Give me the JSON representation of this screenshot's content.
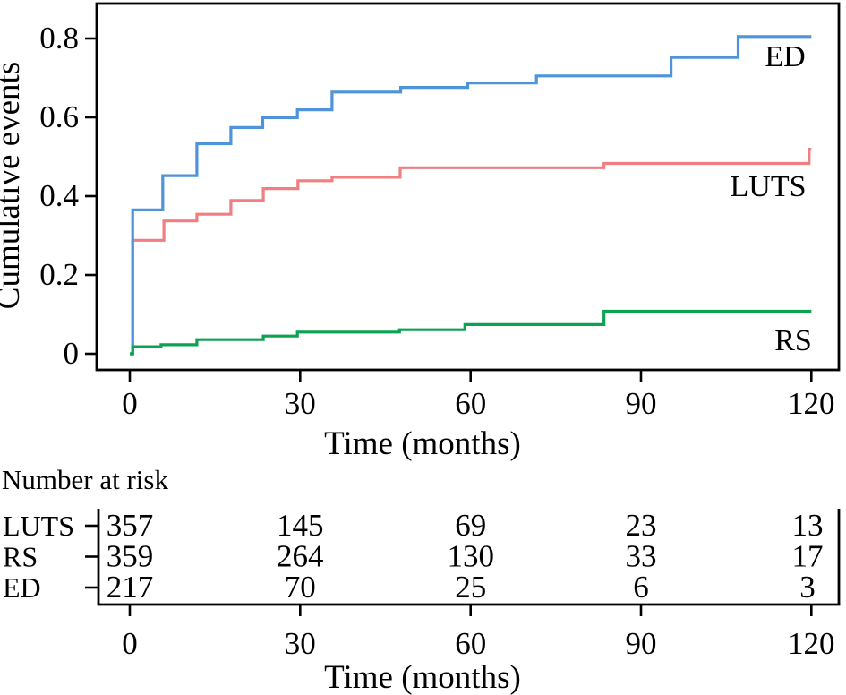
{
  "chart_data": {
    "type": "line",
    "subtype": "step",
    "title": "",
    "xlabel": "Time (months)",
    "ylabel": "Cumulative events",
    "xlim": [
      0,
      120
    ],
    "ylim": [
      0,
      0.89
    ],
    "grid": false,
    "legend_position": "inline-right",
    "x_ticks": [
      0,
      30,
      60,
      90,
      120
    ],
    "x_tick_labels": [
      "0",
      "30",
      "60",
      "90",
      "120"
    ],
    "y_ticks": [
      0,
      0.2,
      0.4,
      0.6,
      0.8
    ],
    "y_tick_labels": [
      "0",
      "0.2",
      "0.4",
      "0.6",
      "0.8"
    ],
    "series": [
      {
        "name": "LUTS",
        "color": "#ef7f80",
        "end_month": 120,
        "steps": [
          [
            0.5,
            0.288
          ],
          [
            6,
            0.337
          ],
          [
            11.8,
            0.354
          ],
          [
            17.8,
            0.389
          ],
          [
            23.5,
            0.419
          ],
          [
            29.6,
            0.439
          ],
          [
            35.6,
            0.448
          ],
          [
            47.6,
            0.472
          ],
          [
            83.5,
            0.483
          ],
          [
            119.6,
            0.519
          ]
        ]
      },
      {
        "name": "ED",
        "color": "#4f94d8",
        "end_month": 120,
        "steps": [
          [
            0.5,
            0.365
          ],
          [
            5.8,
            0.452
          ],
          [
            11.8,
            0.533
          ],
          [
            17.8,
            0.574
          ],
          [
            23.4,
            0.599
          ],
          [
            29.5,
            0.619
          ],
          [
            35.6,
            0.664
          ],
          [
            47.7,
            0.676
          ],
          [
            59.5,
            0.687
          ],
          [
            71.6,
            0.705
          ],
          [
            95.3,
            0.752
          ],
          [
            107.1,
            0.805
          ]
        ]
      },
      {
        "name": "RS",
        "color": "#0aa351",
        "end_month": 120,
        "steps": [
          [
            0.5,
            0.018
          ],
          [
            5.5,
            0.023
          ],
          [
            11.8,
            0.036
          ],
          [
            23.5,
            0.045
          ],
          [
            29.5,
            0.055
          ],
          [
            47.5,
            0.061
          ],
          [
            59,
            0.074
          ],
          [
            83.5,
            0.108
          ]
        ]
      }
    ],
    "number_at_risk": {
      "title": "Number at risk",
      "xlabel": "Time (months)",
      "x_tick_labels": [
        "0",
        "30",
        "60",
        "90",
        "120"
      ],
      "rows": [
        {
          "label": "LUTS",
          "values": [
            "357",
            "145",
            "69",
            "23",
            "13"
          ]
        },
        {
          "label": "RS",
          "values": [
            "359",
            "264",
            "130",
            "33",
            "17"
          ]
        },
        {
          "label": "ED",
          "values": [
            "217",
            "70",
            "25",
            "6",
            "3"
          ]
        }
      ]
    },
    "colors": {
      "ed": "#4f94d8",
      "luts": "#ef7f80",
      "rs": "#0aa351",
      "axis": "#000000"
    }
  }
}
